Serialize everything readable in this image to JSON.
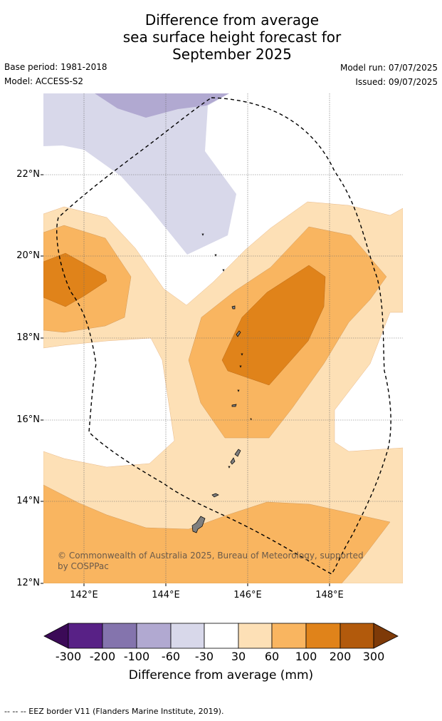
{
  "title": {
    "lines": [
      "Difference from average",
      "sea surface height forecast for",
      "September 2025"
    ]
  },
  "meta": {
    "base_period": "Base period: 1981-2018",
    "model": "Model: ACCESS-S2",
    "model_run": "Model run: 07/07/2025",
    "issued": "Issued: 09/07/2025"
  },
  "map": {
    "lon_range": [
      141,
      149.8
    ],
    "lat_range": [
      12,
      24
    ],
    "lat_ticks": [
      "22°N",
      "20°N",
      "18°N",
      "16°N",
      "14°N",
      "12°N"
    ],
    "lon_ticks": [
      "142°E",
      "144°E",
      "146°E",
      "148°E"
    ],
    "copyright": "© Commonwealth of Australia 2025, Bureau of Meteorology, supported by COSPPac"
  },
  "colorbar": {
    "ticks": [
      "-300",
      "-200",
      "-100",
      "-60",
      "-30",
      "30",
      "60",
      "100",
      "200",
      "300"
    ],
    "colors": [
      "#3b0a57",
      "#582186",
      "#8474ad",
      "#b1a9d1",
      "#d8d8ea",
      "#ffffff",
      "#fde0b6",
      "#f9b560",
      "#e0831a",
      "#b25a0c",
      "#7e3a08"
    ],
    "label": "Difference from average (mm)"
  },
  "footnote": "--  --  -- EEZ border V11 (Flanders Marine Institute, 2019)."
}
